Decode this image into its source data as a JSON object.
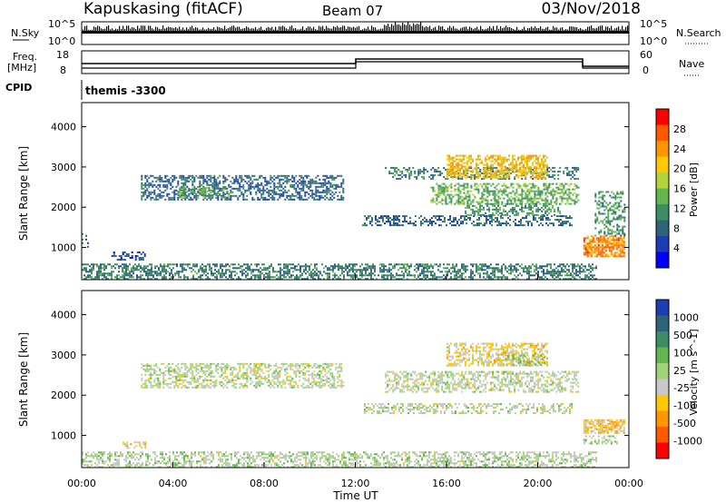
{
  "header": {
    "station": "Kapuskasing (fitACF)",
    "beam": "Beam 07",
    "date": "03/Nov/2018"
  },
  "top_panel": {
    "nsky_label": "N.Sky",
    "nsky_ticks": [
      "10^5",
      "10^0"
    ],
    "nsearch_label": "N.Search",
    "nsearch_ticks": [
      "10^5",
      "10^0"
    ],
    "freq_label_1": "Freq.",
    "freq_label_2": "[MHz]",
    "freq_ticks": [
      "18",
      "8"
    ],
    "nave_label": "Nave",
    "nave_ticks": [
      "60",
      "0"
    ],
    "cpid_label": "CPID",
    "cpid_text": "themis -3300"
  },
  "x_axis": {
    "label": "Time UT",
    "ticks": [
      "00:00",
      "04:00",
      "08:00",
      "12:00",
      "16:00",
      "20:00",
      "00:00"
    ]
  },
  "power_colorbar": {
    "label": "Power [dB]",
    "ticks": [
      "28",
      "24",
      "20",
      "16",
      "12",
      "8",
      "4"
    ],
    "colors": [
      "#ff0000",
      "#ff5a00",
      "#ff9600",
      "#ffc800",
      "#b4d23c",
      "#64b450",
      "#3c8c64",
      "#2d6478",
      "#1e3cb4",
      "#0000ff"
    ]
  },
  "velocity_colorbar": {
    "label": "Velocity [m s^-1]",
    "ticks": [
      "1000",
      "500",
      "100",
      "25",
      "-25",
      "-100",
      "-500",
      "-1000"
    ],
    "colors": [
      "#1e3cb4",
      "#2d6478",
      "#3c8c64",
      "#64b450",
      "#a0d27a",
      "#c8c8c8",
      "#ffc800",
      "#ff9600",
      "#ff5a00",
      "#ff0000"
    ]
  },
  "chart_data": [
    {
      "type": "heatmap",
      "name": "power",
      "ylabel": "Slant Range [km]",
      "yticks": [
        1000,
        2000,
        3000,
        4000
      ],
      "ylim": [
        200,
        4600
      ],
      "xlim": [
        0,
        24
      ],
      "clim": [
        0,
        32
      ],
      "regions": [
        {
          "t0": 0.0,
          "t1": 22.6,
          "r0": 200,
          "r1": 600,
          "v": 10,
          "density": 0.55
        },
        {
          "t0": 2.6,
          "t1": 11.5,
          "r0": 2200,
          "r1": 2800,
          "v": 8,
          "density": 0.5
        },
        {
          "t0": 4.2,
          "t1": 6.5,
          "r0": 2250,
          "r1": 2500,
          "v": 14,
          "density": 0.5
        },
        {
          "t0": 12.3,
          "t1": 21.5,
          "r0": 1550,
          "r1": 1800,
          "v": 8,
          "density": 0.45
        },
        {
          "t0": 13.3,
          "t1": 21.8,
          "r0": 2700,
          "r1": 3000,
          "v": 10,
          "density": 0.4
        },
        {
          "t0": 16.0,
          "t1": 20.4,
          "r0": 2750,
          "r1": 3300,
          "v": 21,
          "density": 0.6
        },
        {
          "t0": 15.3,
          "t1": 21.8,
          "r0": 2100,
          "r1": 2600,
          "v": 14,
          "density": 0.5
        },
        {
          "t0": 16.8,
          "t1": 21.0,
          "r0": 1800,
          "r1": 2100,
          "v": 12,
          "density": 0.45
        },
        {
          "t0": 22.0,
          "t1": 23.8,
          "r0": 800,
          "r1": 1300,
          "v": 25,
          "density": 0.75
        },
        {
          "t0": 22.5,
          "t1": 23.8,
          "r0": 1300,
          "r1": 2400,
          "v": 12,
          "density": 0.4
        },
        {
          "t0": 1.3,
          "t1": 2.8,
          "r0": 700,
          "r1": 900,
          "v": 6,
          "density": 0.45
        },
        {
          "t0": 0.0,
          "t1": 0.3,
          "r0": 1000,
          "r1": 1400,
          "v": 8,
          "density": 0.3
        }
      ]
    },
    {
      "type": "heatmap",
      "name": "velocity",
      "ylabel": "Slant Range [km]",
      "yticks": [
        1000,
        2000,
        3000,
        4000
      ],
      "ylim": [
        200,
        4600
      ],
      "xlim": [
        0,
        24
      ],
      "clim": [
        -1500,
        1500
      ],
      "regions": [
        {
          "t0": 0.0,
          "t1": 22.6,
          "r0": 200,
          "r1": 600,
          "v": 60,
          "density": 0.5
        },
        {
          "t0": 2.6,
          "t1": 11.5,
          "r0": 2200,
          "r1": 2800,
          "v": 0,
          "density": 0.5
        },
        {
          "t0": 12.3,
          "t1": 21.5,
          "r0": 1550,
          "r1": 1800,
          "v": 0,
          "density": 0.45
        },
        {
          "t0": 13.3,
          "t1": 21.8,
          "r0": 2100,
          "r1": 2600,
          "v": 0,
          "density": 0.5
        },
        {
          "t0": 16.0,
          "t1": 20.4,
          "r0": 2750,
          "r1": 3300,
          "v": -300,
          "density": 0.55
        },
        {
          "t0": 18.5,
          "t1": 20.3,
          "r0": 2750,
          "r1": 3050,
          "v": 250,
          "density": 0.45
        },
        {
          "t0": 22.0,
          "t1": 23.8,
          "r0": 1050,
          "r1": 1400,
          "v": -400,
          "density": 0.7
        },
        {
          "t0": 1.8,
          "t1": 2.8,
          "r0": 700,
          "r1": 850,
          "v": -300,
          "density": 0.5
        },
        {
          "t0": 22.0,
          "t1": 23.5,
          "r0": 800,
          "r1": 1000,
          "v": 120,
          "density": 0.4
        }
      ]
    }
  ]
}
